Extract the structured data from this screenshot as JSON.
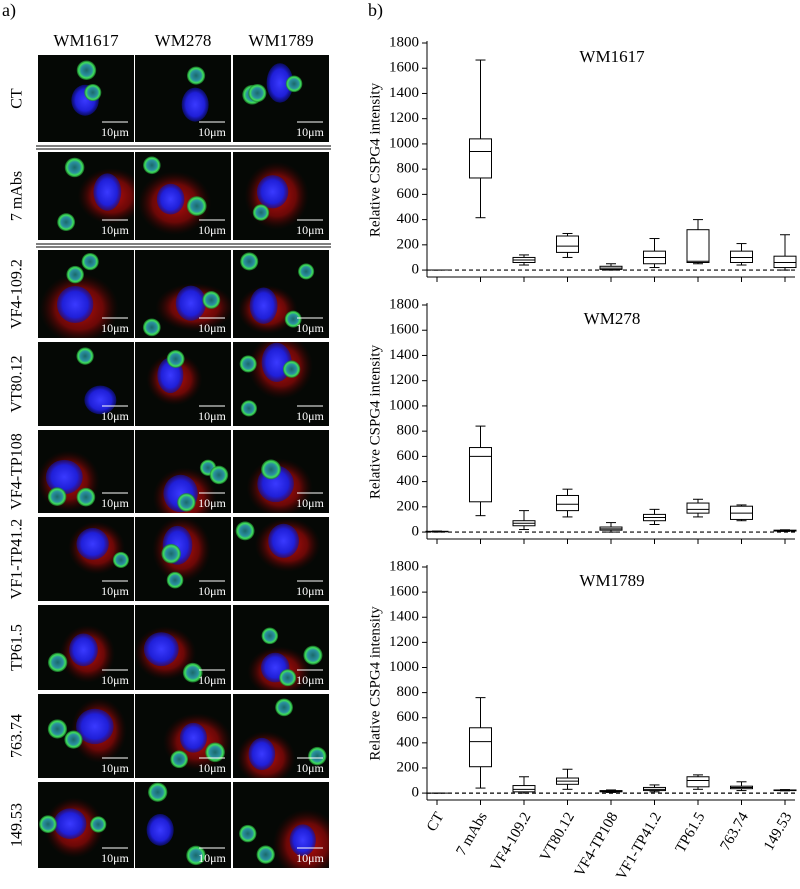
{
  "panel_a": {
    "label": "a)",
    "columns": [
      "WM1617",
      "WM278",
      "WM1789"
    ],
    "rows": [
      "CT",
      "7 mAbs",
      "VF4-109.2",
      "VT80.12",
      "VF4-TP108",
      "VF1-TP41.2",
      "TP61.5",
      "763.74",
      "149.53"
    ],
    "scale_bar_label": "10μm"
  },
  "panel_b": {
    "label": "b)"
  },
  "chart_data": [
    {
      "type": "box",
      "title": "WM1617",
      "ylabel": "Relative CSPG4 intensity",
      "categories": [
        "CT",
        "7 mAbs",
        "VF4-109.2",
        "VT80.12",
        "VF4-TP108",
        "VF1-TP41.2",
        "TP61.5",
        "763.74",
        "149.53"
      ],
      "show_x_labels": false,
      "boxes": [
        {
          "min": 0,
          "q1": 0,
          "median": 0,
          "q3": 0,
          "max": 0
        },
        {
          "min": 415,
          "q1": 730,
          "median": 940,
          "q3": 1040,
          "max": 1665
        },
        {
          "min": 40,
          "q1": 60,
          "median": 80,
          "q3": 100,
          "max": 120
        },
        {
          "min": 100,
          "q1": 140,
          "median": 190,
          "q3": 270,
          "max": 290
        },
        {
          "min": 0,
          "q1": 5,
          "median": 15,
          "q3": 30,
          "max": 50
        },
        {
          "min": 20,
          "q1": 50,
          "median": 100,
          "q3": 150,
          "max": 250
        },
        {
          "min": 50,
          "q1": 60,
          "median": 70,
          "q3": 320,
          "max": 400
        },
        {
          "min": 40,
          "q1": 60,
          "median": 100,
          "q3": 150,
          "max": 210
        },
        {
          "min": 0,
          "q1": 20,
          "median": 60,
          "q3": 110,
          "max": 280
        }
      ],
      "ylim": [
        -55,
        1800
      ],
      "yticks": [
        0,
        200,
        400,
        600,
        800,
        1000,
        1200,
        1400,
        1600,
        1800
      ],
      "reference_line": 0,
      "color": "#000000"
    },
    {
      "type": "box",
      "title": "WM278",
      "ylabel": "Relative CSPG4 intensity",
      "categories": [
        "CT",
        "7 mAbs",
        "VF4-109.2",
        "VT80.12",
        "VF4-TP108",
        "VF1-TP41.2",
        "TP61.5",
        "763.74",
        "149.53"
      ],
      "show_x_labels": false,
      "boxes": [
        {
          "min": 0,
          "q1": 2,
          "median": 4,
          "q3": 6,
          "max": 8
        },
        {
          "min": 130,
          "q1": 240,
          "median": 600,
          "q3": 670,
          "max": 840
        },
        {
          "min": 20,
          "q1": 50,
          "median": 70,
          "q3": 90,
          "max": 170
        },
        {
          "min": 120,
          "q1": 170,
          "median": 220,
          "q3": 290,
          "max": 340
        },
        {
          "min": 0,
          "q1": 15,
          "median": 25,
          "q3": 40,
          "max": 75
        },
        {
          "min": 60,
          "q1": 90,
          "median": 115,
          "q3": 140,
          "max": 180
        },
        {
          "min": 120,
          "q1": 150,
          "median": 180,
          "q3": 230,
          "max": 260
        },
        {
          "min": 90,
          "q1": 100,
          "median": 150,
          "q3": 205,
          "max": 215
        },
        {
          "min": 5,
          "q1": 8,
          "median": 12,
          "q3": 15,
          "max": 18
        }
      ],
      "ylim": [
        -55,
        1800
      ],
      "yticks": [
        0,
        200,
        400,
        600,
        800,
        1000,
        1200,
        1400,
        1600,
        1800
      ],
      "reference_line": 0,
      "color": "#000000"
    },
    {
      "type": "box",
      "title": "WM1789",
      "ylabel": "Relative CSPG4 intensity",
      "categories": [
        "CT",
        "7 mAbs",
        "VF4-109.2",
        "VT80.12",
        "VF4-TP108",
        "VF1-TP41.2",
        "TP61.5",
        "763.74",
        "149.53"
      ],
      "show_x_labels": true,
      "boxes": [
        {
          "min": 0,
          "q1": 0,
          "median": 0,
          "q3": 0,
          "max": 0
        },
        {
          "min": 40,
          "q1": 210,
          "median": 410,
          "q3": 520,
          "max": 760
        },
        {
          "min": 0,
          "q1": 10,
          "median": 30,
          "q3": 60,
          "max": 130
        },
        {
          "min": 30,
          "q1": 70,
          "median": 95,
          "q3": 120,
          "max": 190
        },
        {
          "min": 5,
          "q1": 10,
          "median": 15,
          "q3": 20,
          "max": 25
        },
        {
          "min": 10,
          "q1": 20,
          "median": 30,
          "q3": 45,
          "max": 65
        },
        {
          "min": 30,
          "q1": 50,
          "median": 100,
          "q3": 130,
          "max": 145
        },
        {
          "min": 20,
          "q1": 35,
          "median": 45,
          "q3": 55,
          "max": 90
        },
        {
          "min": 18,
          "q1": 20,
          "median": 22,
          "q3": 25,
          "max": 28
        }
      ],
      "ylim": [
        -55,
        1800
      ],
      "yticks": [
        0,
        200,
        400,
        600,
        800,
        1000,
        1200,
        1400,
        1600,
        1800
      ],
      "reference_line": 0,
      "color": "#000000"
    }
  ]
}
